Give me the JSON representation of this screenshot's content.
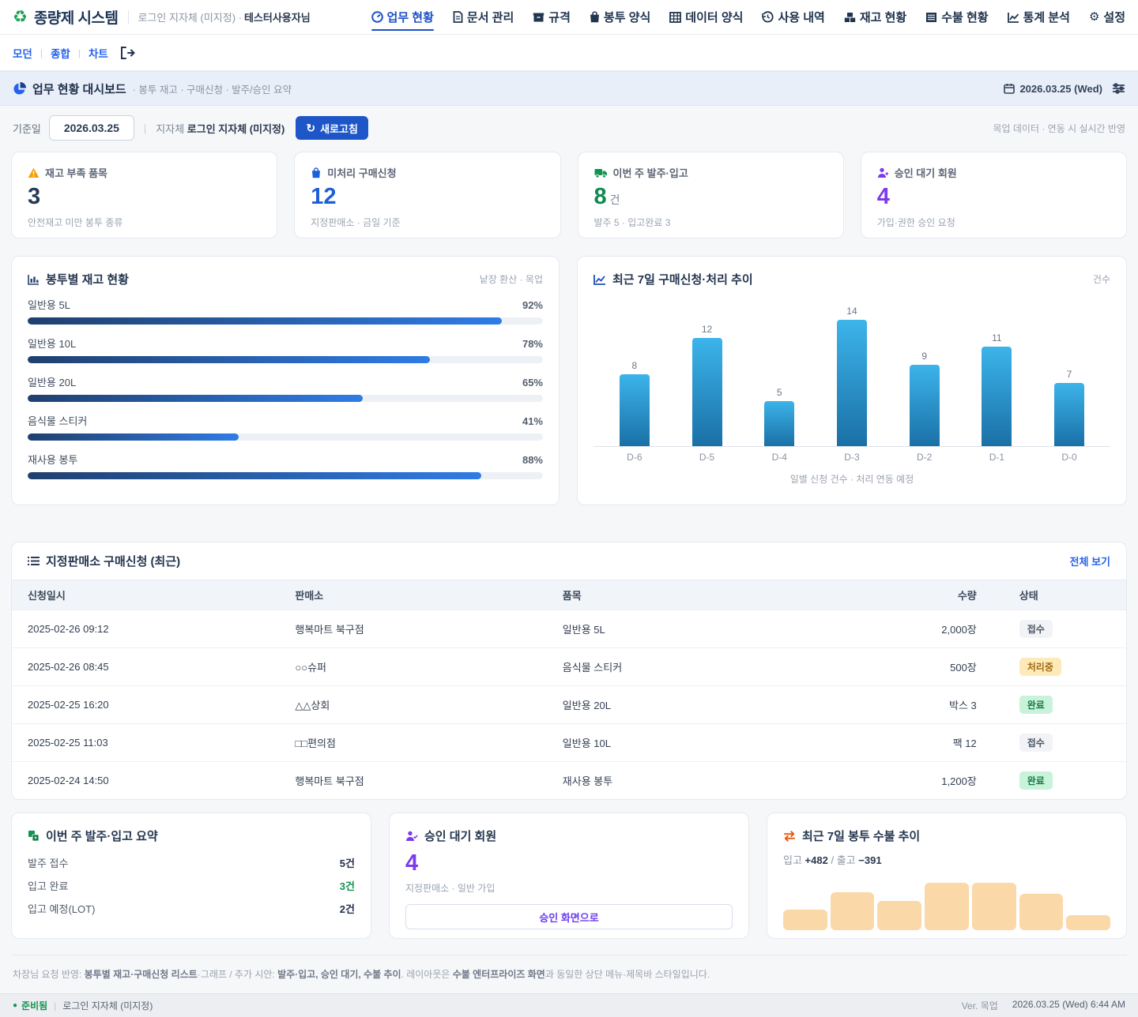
{
  "header": {
    "app_title": "종량제 시스템",
    "login_context": "로그인 지자체 (미지정) ·",
    "user_name": "테스터사용자님",
    "nav_items": [
      {
        "label": "업무 현황",
        "icon": "gauge-icon",
        "active": true
      },
      {
        "label": "문서 관리",
        "icon": "document-icon",
        "active": false
      },
      {
        "label": "규격",
        "icon": "package-icon",
        "active": false
      },
      {
        "label": "봉투 양식",
        "icon": "bag-icon",
        "active": false
      },
      {
        "label": "데이터 양식",
        "icon": "table-grid-icon",
        "active": false
      },
      {
        "label": "사용 내역",
        "icon": "history-icon",
        "active": false
      },
      {
        "label": "재고 현황",
        "icon": "boxes-icon",
        "active": false
      },
      {
        "label": "수불 현황",
        "icon": "ledger-icon",
        "active": false
      },
      {
        "label": "통계 분석",
        "icon": "line-chart-icon",
        "active": false
      },
      {
        "label": "설정",
        "icon": "gear-icon",
        "active": false
      }
    ]
  },
  "toolbar": {
    "links": [
      "모던",
      "종합",
      "차트"
    ],
    "exit_icon": "logout-icon"
  },
  "banner": {
    "icon": "pie-chart-icon",
    "title": "업무 현황 대시보드",
    "subtitle": "· 봉투 재고 · 구매신청 · 발주/승인 요약",
    "date": "2026.03.25 (Wed)",
    "filter_icon": "sliders-icon"
  },
  "controls": {
    "date_label": "기준일",
    "date_value": "2026.03.25",
    "org_label": "지자체",
    "org_value": "로그인 지자체 (미지정)",
    "refresh_label": "새로고침",
    "note": "목업 데이터 · 연동 시 실시간 반영"
  },
  "stat_cards": [
    {
      "label": "재고 부족 품목",
      "value": "3",
      "sub": "안전재고 미만 봉투 종류",
      "accent": "#243b55",
      "icon": "warning-icon"
    },
    {
      "label": "미처리 구매신청",
      "value": "12",
      "sub": "지정판매소 · 금일 기준",
      "accent": "#1d5fd6",
      "icon": "shopping-bag-icon"
    },
    {
      "label": "이번 주 발주·입고",
      "value": "8",
      "unit": "건",
      "sub": "발주 5 · 입고완료 3",
      "accent": "#0f8a50",
      "icon": "truck-icon"
    },
    {
      "label": "승인 대기 회원",
      "value": "4",
      "sub": "가입·권한 승인 요청",
      "accent": "#7c3aed",
      "icon": "user-plus-icon"
    }
  ],
  "stock_panel": {
    "title": "봉투별 재고 현황",
    "note": "낱장 환산 · 목업",
    "icon": "bar-chart-icon"
  },
  "trend_panel": {
    "title": "최근 7일 구매신청·처리 추이",
    "unit_label": "건수",
    "caption": "일별 신청 건수 · 처리 연동 예정",
    "icon": "line-chart-icon"
  },
  "table_panel": {
    "icon": "list-icon",
    "title": "지정판매소 구매신청 (최근)",
    "view_all": "전체 보기",
    "columns": [
      "신청일시",
      "판매소",
      "품목",
      "수량",
      "상태"
    ],
    "rows": [
      {
        "datetime": "2025-02-26 09:12",
        "store": "행복마트 북구점",
        "item": "일반용 5L",
        "qty": "2,000장",
        "status": "접수",
        "status_type": "received"
      },
      {
        "datetime": "2025-02-26 08:45",
        "store": "○○슈퍼",
        "item": "음식물 스티커",
        "qty": "500장",
        "status": "처리중",
        "status_type": "processing"
      },
      {
        "datetime": "2025-02-25 16:20",
        "store": "△△상회",
        "item": "일반용 20L",
        "qty": "박스 3",
        "status": "완료",
        "status_type": "done"
      },
      {
        "datetime": "2025-02-25 11:03",
        "store": "□□편의점",
        "item": "일반용 10L",
        "qty": "팩 12",
        "status": "접수",
        "status_type": "received"
      },
      {
        "datetime": "2025-02-24 14:50",
        "store": "행복마트 북구점",
        "item": "재사용 봉투",
        "qty": "1,200장",
        "status": "완료",
        "status_type": "done"
      }
    ]
  },
  "bottom": {
    "orders": {
      "icon": "boxes-icon",
      "title": "이번 주 발주·입고 요약",
      "rows": [
        {
          "label": "발주 접수",
          "value": "5건",
          "color": "#22304a"
        },
        {
          "label": "입고 완료",
          "value": "3건",
          "color": "#12934f"
        },
        {
          "label": "입고 예정(LOT)",
          "value": "2건",
          "color": "#22304a"
        }
      ]
    },
    "approval": {
      "icon": "user-check-icon",
      "title": "승인 대기 회원",
      "value": "4",
      "sub": "지정판매소 · 일반 가입",
      "button_label": "승인 화면으로"
    },
    "flow": {
      "icon": "swap-arrows-icon",
      "title": "최근 7일 봉투 수불 추이",
      "in_label": "입고",
      "in_value": "+482",
      "separator": "/",
      "out_label": "출고",
      "out_value": "−391"
    }
  },
  "footer_note_segments": [
    {
      "text": "차장님 요청 반영: ",
      "bold": false
    },
    {
      "text": "봉투별 재고·구매신청 리스트",
      "bold": true
    },
    {
      "text": "·그래프 / 추가 시안: ",
      "bold": false
    },
    {
      "text": "발주·입고, 승인 대기, 수불 추이",
      "bold": true
    },
    {
      "text": ". 레이아웃은 ",
      "bold": false
    },
    {
      "text": "수불 엔터프라이즈 화면",
      "bold": true
    },
    {
      "text": "과 동일한 상단 메뉴·제목바 스타일입니다.",
      "bold": false
    }
  ],
  "status_bar": {
    "status": "준비됨",
    "org": "로그인 지자체 (미지정)",
    "version": "Ver. 목업",
    "datetime": "2026.03.25 (Wed) 6:44 AM"
  },
  "chart_data": [
    {
      "type": "bar",
      "title": "최근 7일 구매신청·처리 추이",
      "categories": [
        "D-6",
        "D-5",
        "D-4",
        "D-3",
        "D-2",
        "D-1",
        "D-0"
      ],
      "values": [
        8,
        12,
        5,
        14,
        9,
        11,
        7
      ],
      "ylabel": "건수",
      "ylim": [
        0,
        14
      ],
      "caption": "일별 신청 건수 · 처리 연동 예정",
      "bar_gradient": [
        "#3cb4ea",
        "#1a70a6"
      ]
    },
    {
      "type": "bar",
      "title": "봉투별 재고 현황",
      "categories": [
        "일반용 5L",
        "일반용 10L",
        "일반용 20L",
        "음식물 스티커",
        "재사용 봉투"
      ],
      "values": [
        92,
        78,
        65,
        41,
        88
      ],
      "unit": "%",
      "ylim": [
        0,
        100
      ],
      "bar_gradient": [
        "#20406e",
        "#2f7ce6"
      ]
    },
    {
      "type": "bar",
      "title": "최근 7일 봉투 수불 추이",
      "relative_heights": [
        26,
        48,
        37,
        60,
        60,
        46,
        19
      ],
      "color": "#fbd8a8",
      "note": "입고 +482 / 출고 −391"
    }
  ]
}
